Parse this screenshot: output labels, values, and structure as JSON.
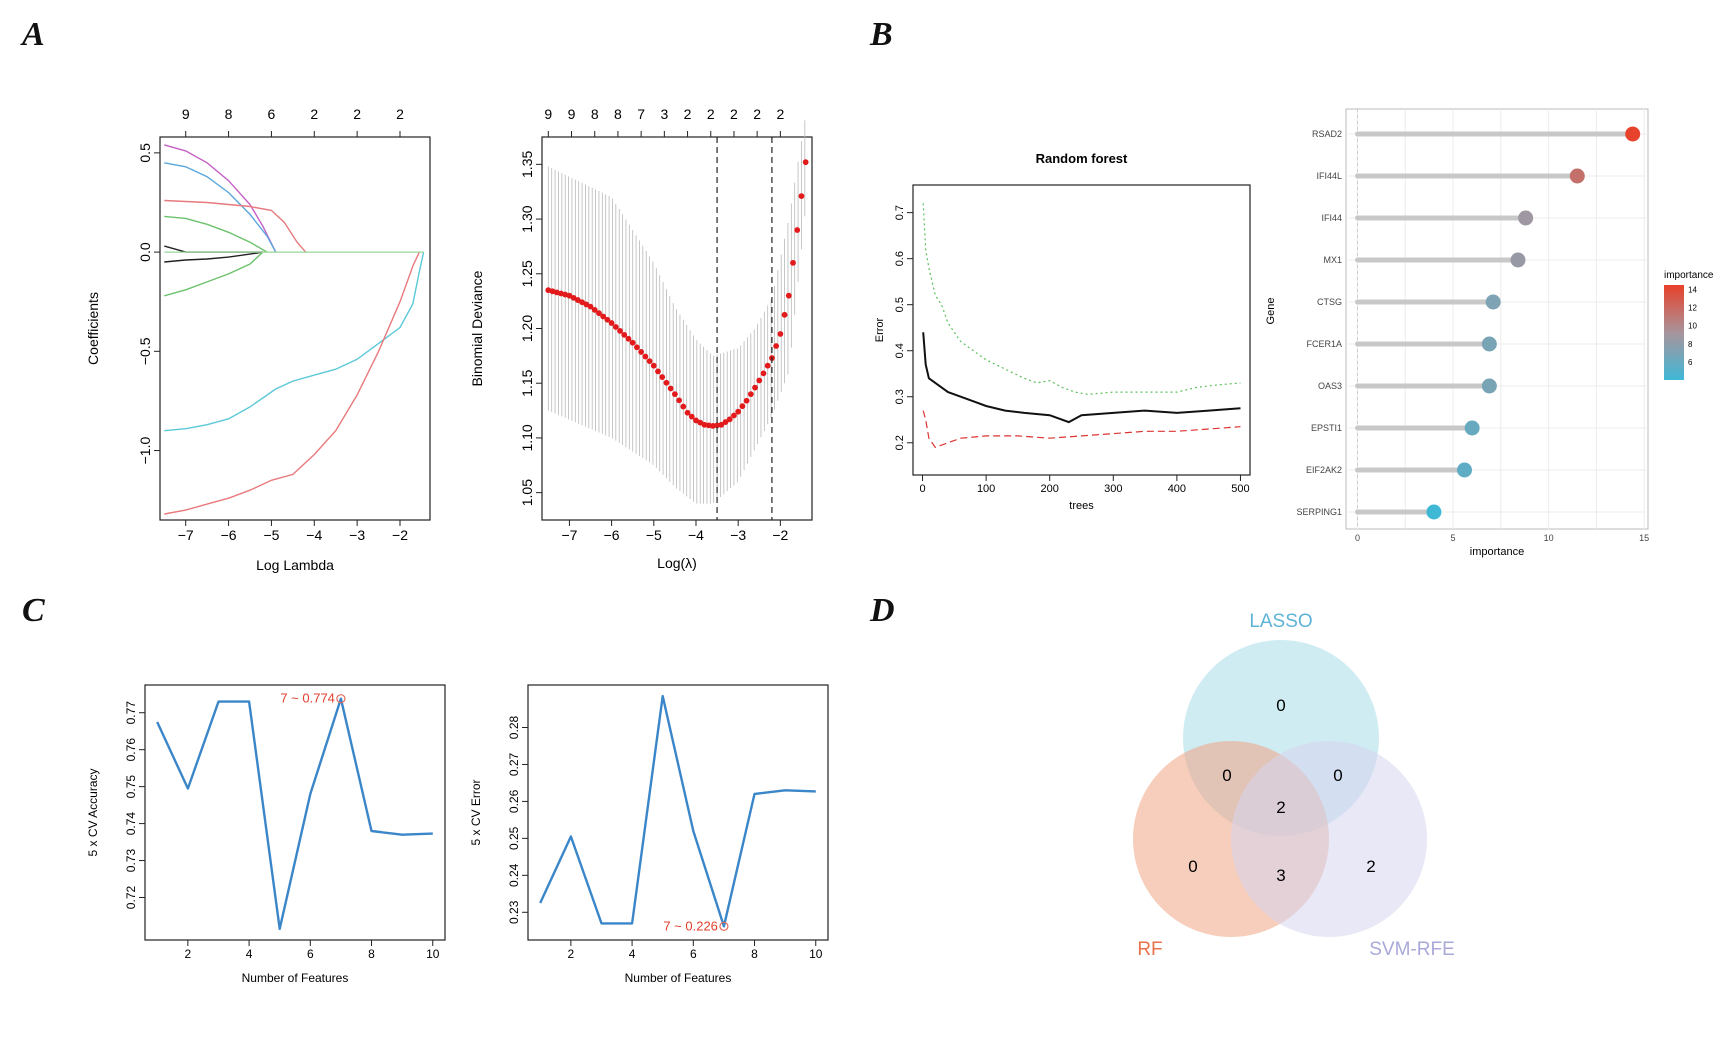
{
  "panel_letters": [
    "A",
    "B",
    "C",
    "D"
  ],
  "chart_data": [
    {
      "id": "lasso-coef",
      "type": "line",
      "title": "",
      "xlabel": "Log Lambda",
      "ylabel": "Coefficients",
      "xlim": [
        -7.6,
        -1.3
      ],
      "ylim": [
        -1.35,
        0.58
      ],
      "x_ticks": [
        -7,
        -6,
        -5,
        -4,
        -3,
        -2
      ],
      "y_ticks": [
        -1.0,
        -0.5,
        0.0,
        0.5
      ],
      "y_tick_labels": [
        "-1.0",
        "-0.5",
        "0.0",
        "0.5"
      ],
      "top_ticks": [
        {
          "x": -7,
          "label": "9"
        },
        {
          "x": -6,
          "label": "8"
        },
        {
          "x": -5,
          "label": "6"
        },
        {
          "x": -4,
          "label": "2"
        },
        {
          "x": -3,
          "label": "2"
        },
        {
          "x": -2,
          "label": "2"
        }
      ],
      "series": [
        {
          "color": "#c55fc5",
          "points": [
            [
              -7.5,
              0.54
            ],
            [
              -7,
              0.51
            ],
            [
              -6.5,
              0.45
            ],
            [
              -6,
              0.36
            ],
            [
              -5.5,
              0.24
            ],
            [
              -5.2,
              0.13
            ],
            [
              -4.9,
              0.0
            ]
          ]
        },
        {
          "color": "#5aa6dc",
          "points": [
            [
              -7.5,
              0.45
            ],
            [
              -7,
              0.43
            ],
            [
              -6.5,
              0.38
            ],
            [
              -6,
              0.3
            ],
            [
              -5.5,
              0.19
            ],
            [
              -5.1,
              0.08
            ],
            [
              -4.9,
              0.0
            ]
          ]
        },
        {
          "color": "#e8797c",
          "points": [
            [
              -7.5,
              0.26
            ],
            [
              -6.5,
              0.25
            ],
            [
              -5.5,
              0.23
            ],
            [
              -5,
              0.21
            ],
            [
              -4.7,
              0.15
            ],
            [
              -4.4,
              0.05
            ],
            [
              -4.2,
              0.0
            ]
          ]
        },
        {
          "color": "#6cc26c",
          "points": [
            [
              -7.5,
              0.18
            ],
            [
              -7,
              0.17
            ],
            [
              -6.5,
              0.14
            ],
            [
              -6,
              0.1
            ],
            [
              -5.5,
              0.05
            ],
            [
              -5.1,
              0.0
            ]
          ]
        },
        {
          "color": "#222222",
          "points": [
            [
              -7.5,
              0.03
            ],
            [
              -7,
              0.0
            ],
            [
              -5.2,
              0.0
            ]
          ]
        },
        {
          "color": "#222222",
          "points": [
            [
              -7.5,
              -0.05
            ],
            [
              -7,
              -0.04
            ],
            [
              -6.5,
              -0.035
            ],
            [
              -6,
              -0.025
            ],
            [
              -5.5,
              -0.01
            ],
            [
              -5.2,
              0.0
            ]
          ]
        },
        {
          "color": "#6cc26c",
          "points": [
            [
              -7.5,
              -0.22
            ],
            [
              -7,
              -0.19
            ],
            [
              -6.5,
              -0.15
            ],
            [
              -6,
              -0.11
            ],
            [
              -5.5,
              -0.06
            ],
            [
              -5.2,
              0.0
            ]
          ]
        },
        {
          "color": "#5cc9d8",
          "points": [
            [
              -7.5,
              -0.9
            ],
            [
              -7,
              -0.89
            ],
            [
              -6.5,
              -0.87
            ],
            [
              -6,
              -0.84
            ],
            [
              -5.5,
              -0.78
            ],
            [
              -5.1,
              -0.72
            ],
            [
              -4.9,
              -0.69
            ],
            [
              -4.5,
              -0.65
            ],
            [
              -4,
              -0.62
            ],
            [
              -3.5,
              -0.59
            ],
            [
              -3,
              -0.54
            ],
            [
              -2.5,
              -0.46
            ],
            [
              -2,
              -0.38
            ],
            [
              -1.7,
              -0.26
            ],
            [
              -1.55,
              -0.1
            ],
            [
              -1.45,
              0.0
            ]
          ]
        },
        {
          "color": "#e8797c",
          "points": [
            [
              -7.5,
              -1.32
            ],
            [
              -7,
              -1.3
            ],
            [
              -6.5,
              -1.27
            ],
            [
              -6,
              -1.24
            ],
            [
              -5.5,
              -1.2
            ],
            [
              -5,
              -1.15
            ],
            [
              -4.5,
              -1.12
            ],
            [
              -4,
              -1.02
            ],
            [
              -3.5,
              -0.9
            ],
            [
              -3,
              -0.72
            ],
            [
              -2.5,
              -0.5
            ],
            [
              -2,
              -0.25
            ],
            [
              -1.7,
              -0.07
            ],
            [
              -1.55,
              0.0
            ]
          ]
        }
      ]
    },
    {
      "id": "lasso-cv",
      "type": "line",
      "title": "",
      "xlabel": "Log(λ)",
      "ylabel": "Binomial Deviance",
      "xlim": [
        -7.65,
        -1.25
      ],
      "ylim": [
        1.025,
        1.375
      ],
      "x_ticks": [
        -7,
        -6,
        -5,
        -4,
        -3,
        -2
      ],
      "y_ticks": [
        1.05,
        1.1,
        1.15,
        1.2,
        1.25,
        1.3,
        1.35
      ],
      "y_tick_labels": [
        "1.05",
        "1.10",
        "1.15",
        "1.20",
        "1.25",
        "1.30",
        "1.35"
      ],
      "top_ticks": [
        {
          "x": -7.5,
          "label": "9"
        },
        {
          "x": -6.95,
          "label": "9"
        },
        {
          "x": -6.4,
          "label": "8"
        },
        {
          "x": -5.85,
          "label": "8"
        },
        {
          "x": -5.3,
          "label": "7"
        },
        {
          "x": -4.75,
          "label": "3"
        },
        {
          "x": -4.2,
          "label": "2"
        },
        {
          "x": -3.65,
          "label": "2"
        },
        {
          "x": -3.1,
          "label": "2"
        },
        {
          "x": -2.55,
          "label": "2"
        },
        {
          "x": -2.0,
          "label": "2"
        }
      ],
      "vlines": [
        -3.5,
        -2.2
      ],
      "curve": [
        [
          -7.5,
          1.235
        ],
        [
          -7,
          1.23
        ],
        [
          -6.5,
          1.22
        ],
        [
          -6,
          1.205
        ],
        [
          -5.5,
          1.187
        ],
        [
          -5,
          1.166
        ],
        [
          -4.5,
          1.14
        ],
        [
          -4.2,
          1.123
        ],
        [
          -4,
          1.116
        ],
        [
          -3.8,
          1.112
        ],
        [
          -3.6,
          1.111
        ],
        [
          -3.4,
          1.112
        ],
        [
          -3.2,
          1.117
        ],
        [
          -3,
          1.124
        ],
        [
          -2.8,
          1.134
        ],
        [
          -2.6,
          1.146
        ],
        [
          -2.4,
          1.159
        ],
        [
          -2.2,
          1.173
        ],
        [
          -2,
          1.195
        ],
        [
          -1.8,
          1.23
        ],
        [
          -1.6,
          1.29
        ],
        [
          -1.4,
          1.352
        ]
      ],
      "err_lower": [
        [
          -7.5,
          1.125
        ],
        [
          -6,
          1.1
        ],
        [
          -5,
          1.075
        ],
        [
          -4.5,
          1.055
        ],
        [
          -4,
          1.04
        ],
        [
          -3.6,
          1.04
        ],
        [
          -3,
          1.06
        ],
        [
          -2.6,
          1.09
        ],
        [
          -2.2,
          1.12
        ],
        [
          -1.8,
          1.16
        ],
        [
          -1.4,
          1.31
        ]
      ],
      "err_upper": [
        [
          -7.5,
          1.348
        ],
        [
          -6,
          1.32
        ],
        [
          -5,
          1.26
        ],
        [
          -4.5,
          1.22
        ],
        [
          -4,
          1.19
        ],
        [
          -3.6,
          1.175
        ],
        [
          -3,
          1.182
        ],
        [
          -2.6,
          1.2
        ],
        [
          -2.2,
          1.228
        ],
        [
          -1.8,
          1.3
        ],
        [
          -1.4,
          1.395
        ]
      ]
    },
    {
      "id": "random-forest",
      "type": "line",
      "title": "Random forest",
      "xlabel": "trees",
      "ylabel": "Error",
      "xlim": [
        -15,
        515
      ],
      "ylim": [
        0.13,
        0.76
      ],
      "x_ticks": [
        0,
        100,
        200,
        300,
        400,
        500
      ],
      "y_ticks": [
        0.2,
        0.3,
        0.4,
        0.5,
        0.6,
        0.7
      ],
      "y_tick_labels": [
        "0.2",
        "0.3",
        "0.4",
        "0.5",
        "0.6",
        "0.7"
      ],
      "series": [
        {
          "color": "#5cbf5c",
          "dash": "2,3",
          "points": [
            [
              1,
              0.72
            ],
            [
              5,
              0.62
            ],
            [
              10,
              0.58
            ],
            [
              20,
              0.52
            ],
            [
              30,
              0.5
            ],
            [
              40,
              0.46
            ],
            [
              60,
              0.42
            ],
            [
              80,
              0.4
            ],
            [
              100,
              0.38
            ],
            [
              130,
              0.36
            ],
            [
              160,
              0.34
            ],
            [
              180,
              0.33
            ],
            [
              200,
              0.335
            ],
            [
              220,
              0.32
            ],
            [
              240,
              0.31
            ],
            [
              260,
              0.305
            ],
            [
              300,
              0.31
            ],
            [
              350,
              0.31
            ],
            [
              400,
              0.31
            ],
            [
              430,
              0.32
            ],
            [
              460,
              0.325
            ],
            [
              500,
              0.33
            ]
          ]
        },
        {
          "color": "#111111",
          "width": 2,
          "points": [
            [
              1,
              0.44
            ],
            [
              5,
              0.37
            ],
            [
              10,
              0.34
            ],
            [
              20,
              0.33
            ],
            [
              40,
              0.31
            ],
            [
              60,
              0.3
            ],
            [
              80,
              0.29
            ],
            [
              100,
              0.28
            ],
            [
              130,
              0.27
            ],
            [
              160,
              0.265
            ],
            [
              200,
              0.26
            ],
            [
              230,
              0.245
            ],
            [
              250,
              0.26
            ],
            [
              300,
              0.265
            ],
            [
              350,
              0.27
            ],
            [
              400,
              0.265
            ],
            [
              450,
              0.27
            ],
            [
              500,
              0.275
            ]
          ]
        },
        {
          "color": "#dd3333",
          "dash": "7,4",
          "points": [
            [
              1,
              0.27
            ],
            [
              5,
              0.25
            ],
            [
              10,
              0.21
            ],
            [
              20,
              0.19
            ],
            [
              40,
              0.2
            ],
            [
              60,
              0.21
            ],
            [
              100,
              0.215
            ],
            [
              150,
              0.215
            ],
            [
              200,
              0.21
            ],
            [
              250,
              0.215
            ],
            [
              300,
              0.22
            ],
            [
              350,
              0.225
            ],
            [
              400,
              0.225
            ],
            [
              450,
              0.23
            ],
            [
              500,
              0.235
            ]
          ]
        }
      ]
    },
    {
      "id": "rf-importance",
      "type": "scatter",
      "xlabel": "importance",
      "ylabel": "Gene",
      "xlim": [
        -0.6,
        15.2
      ],
      "x_ticks": [
        0,
        5,
        10,
        15
      ],
      "genes": [
        "RSAD2",
        "IFI44L",
        "IFI44",
        "MX1",
        "CTSG",
        "FCER1A",
        "OAS3",
        "EPSTI1",
        "EIF2AK2",
        "SERPING1"
      ],
      "values": [
        14.4,
        11.5,
        8.8,
        8.4,
        7.1,
        6.9,
        6.9,
        6.0,
        5.6,
        4.0
      ],
      "legend": {
        "title": "importance",
        "ticks": [
          14,
          12,
          10,
          8,
          6
        ],
        "range": [
          4,
          14.5
        ],
        "low_color": "#3fb8d6",
        "mid_color": "#a8949c",
        "high_color": "#e8412a"
      }
    },
    {
      "id": "svm-accuracy",
      "type": "line",
      "xlabel": "Number of Features",
      "ylabel": "5 x CV Accuracy",
      "xlim": [
        0.6,
        10.4
      ],
      "ylim": [
        0.7085,
        0.7775
      ],
      "x_ticks": [
        2,
        4,
        6,
        8,
        10
      ],
      "y_ticks": [
        0.72,
        0.73,
        0.74,
        0.75,
        0.76,
        0.77
      ],
      "y_tick_labels": [
        "0.72",
        "0.73",
        "0.74",
        "0.75",
        "0.76",
        "0.77"
      ],
      "x": [
        1,
        2,
        3,
        4,
        5,
        6,
        7,
        8,
        9,
        10
      ],
      "values": [
        0.7675,
        0.7495,
        0.773,
        0.773,
        0.7115,
        0.748,
        0.7738,
        0.738,
        0.737,
        0.7373
      ],
      "annotation": {
        "x": 7,
        "y": 0.7738,
        "label": "7 ~ 0.774"
      }
    },
    {
      "id": "svm-error",
      "type": "line",
      "xlabel": "Number of Features",
      "ylabel": "5 x CV Error",
      "xlim": [
        0.6,
        10.4
      ],
      "ylim": [
        0.2225,
        0.2915
      ],
      "x_ticks": [
        2,
        4,
        6,
        8,
        10
      ],
      "y_ticks": [
        0.23,
        0.24,
        0.25,
        0.26,
        0.27,
        0.28
      ],
      "y_tick_labels": [
        "0.23",
        "0.24",
        "0.25",
        "0.26",
        "0.27",
        "0.28"
      ],
      "x": [
        1,
        2,
        3,
        4,
        5,
        6,
        7,
        8,
        9,
        10
      ],
      "values": [
        0.2325,
        0.2505,
        0.227,
        0.227,
        0.2885,
        0.252,
        0.2262,
        0.262,
        0.263,
        0.2627
      ],
      "annotation": {
        "x": 7,
        "y": 0.2262,
        "label": "7 ~ 0.226"
      }
    },
    {
      "id": "venn",
      "type": "venn",
      "sets": [
        {
          "name": "LASSO",
          "color": "#a9dcea",
          "label_color": "#5fb3d6"
        },
        {
          "name": "RF",
          "color": "#f0a484",
          "label_color": "#e8734a"
        },
        {
          "name": "SVM-RFE",
          "color": "#d6d6ee",
          "label_color": "#a9a9d9"
        }
      ],
      "regions": [
        {
          "label": "0",
          "sets": "LASSO only"
        },
        {
          "label": "0",
          "sets": "LASSO∩RF"
        },
        {
          "label": "0",
          "sets": "LASSO∩SVM-RFE"
        },
        {
          "label": "2",
          "sets": "all"
        },
        {
          "label": "0",
          "sets": "RF only"
        },
        {
          "label": "3",
          "sets": "RF∩SVM-RFE"
        },
        {
          "label": "2",
          "sets": "SVM-RFE only"
        }
      ]
    }
  ]
}
